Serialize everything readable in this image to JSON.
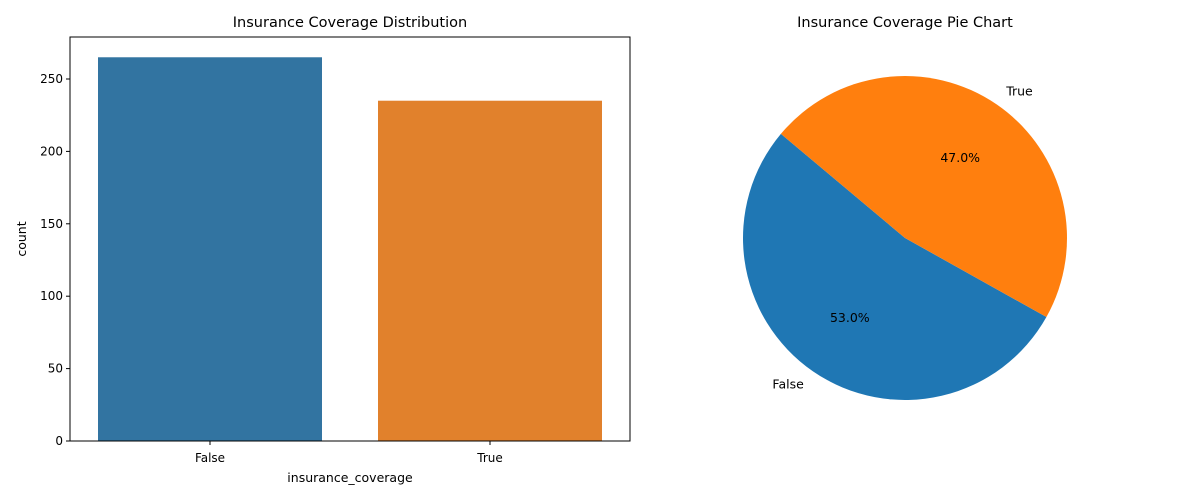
{
  "chart_data": [
    {
      "type": "bar",
      "title": "Insurance Coverage Distribution",
      "xlabel": "insurance_coverage",
      "ylabel": "count",
      "categories": [
        "False",
        "True"
      ],
      "values": [
        265,
        235
      ],
      "ylim": [
        0,
        279
      ],
      "yticks": [
        0,
        50,
        100,
        150,
        200,
        250
      ],
      "colors": [
        "#3274a1",
        "#e1812c"
      ],
      "grid": false,
      "legend": "none"
    },
    {
      "type": "pie",
      "title": "Insurance Coverage Pie Chart",
      "labels": [
        "False",
        "True"
      ],
      "values": [
        53.0,
        47.0
      ],
      "percent_labels": [
        "53.0%",
        "47.0%"
      ],
      "colors": [
        "#1f77b4",
        "#ff7f0e"
      ],
      "start_angle_deg": 140,
      "legend": "none"
    }
  ]
}
